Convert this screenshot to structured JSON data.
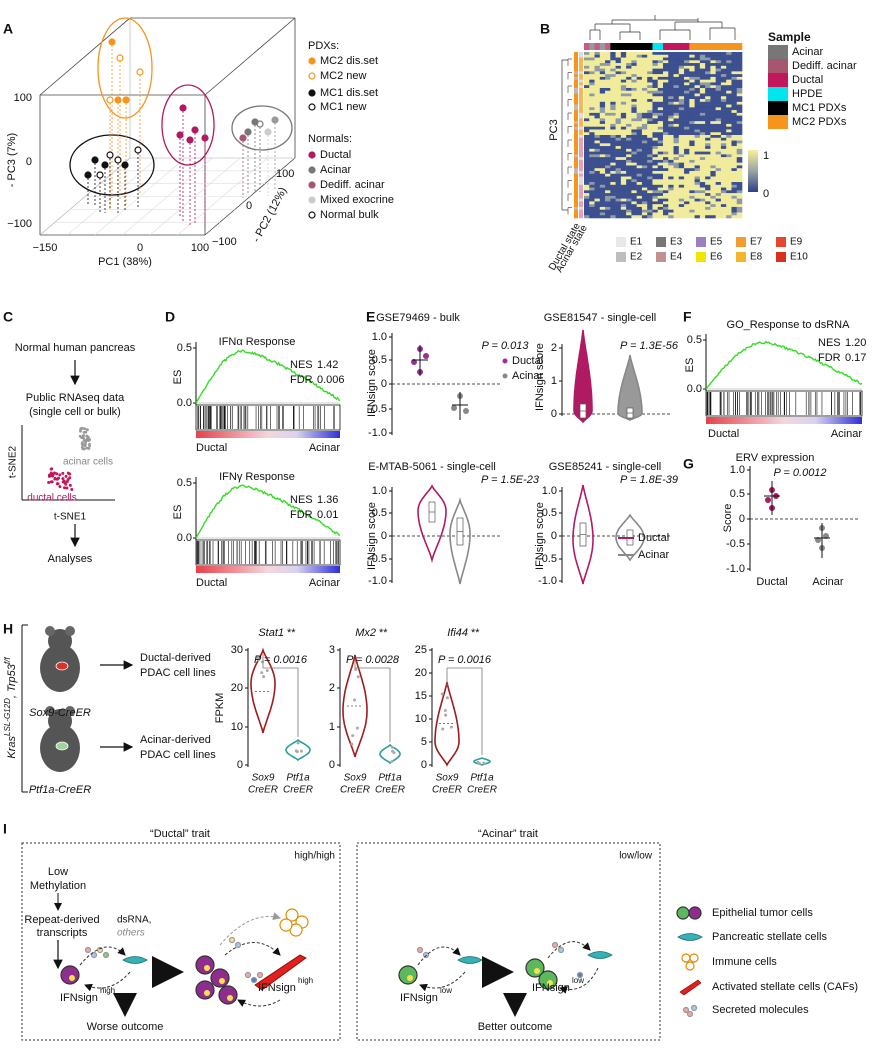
{
  "panels": {
    "A": {
      "label": "A",
      "x_axis": "PC1 (38%)",
      "y_axis": "- PC3 (7%)",
      "z_axis": "- PC2 (12%)",
      "x_ticks": [
        "−150",
        "0",
        "100"
      ],
      "y_ticks": [
        "100",
        "0",
        "−100"
      ],
      "z_ticks": [
        "100",
        "0",
        "−100"
      ],
      "pdx_title": "PDXs:",
      "pdx": [
        "MC2 dis.set",
        "MC2 new",
        "MC1 dis.set",
        "MC1 new"
      ],
      "normals_title": "Normals:",
      "normals": [
        "Ductal",
        "Acinar",
        "Dediff. acinar",
        "Mixed exocrine",
        "Normal bulk"
      ]
    },
    "B": {
      "label": "B",
      "row_label": "PC3",
      "row_annotations": [
        "Ductal state",
        "Acinar state"
      ],
      "scale": [
        "1",
        "0"
      ],
      "legend_title": "Sample",
      "samples": [
        "Acinar",
        "Dediff. acinar",
        "Ductal",
        "HPDE",
        "MC1 PDXs",
        "MC2 PDXs"
      ],
      "states": [
        "E1",
        "E2",
        "E3",
        "E4",
        "E5",
        "E6",
        "E7",
        "E8",
        "E9",
        "E10"
      ]
    },
    "C": {
      "label": "C",
      "start": "Normal human pancreas",
      "data": [
        "Public RNAseq data",
        "(single cell or bulk)"
      ],
      "x_axis": "t-SNE1",
      "y_axis": "t-SNE2",
      "clusters": [
        "acinar cells",
        "ductal cells"
      ],
      "end": "Analyses"
    },
    "D": {
      "label": "D",
      "plots": [
        {
          "title": "IFNα Response",
          "y_label": "ES",
          "ticks": [
            "0.5",
            "0.0"
          ],
          "stats": [
            [
              "NES",
              "1.42"
            ],
            [
              "FDR",
              "0.006"
            ]
          ],
          "ends": [
            "Ductal",
            "Acinar"
          ]
        },
        {
          "title": "IFNγ Response",
          "y_label": "ES",
          "ticks": [
            "0.5",
            "0.0"
          ],
          "stats": [
            [
              "NES",
              "1.36"
            ],
            [
              "FDR",
              "0.01"
            ]
          ],
          "ends": [
            "Ductal",
            "Acinar"
          ]
        }
      ]
    },
    "E": {
      "label": "E",
      "legend": [
        "Ductal",
        "Acinar"
      ],
      "plots": [
        {
          "title": "GSE79469 - bulk",
          "p": "P = 0.013",
          "y_label": "IFNsign score",
          "ticks": [
            "1.0",
            "0.5",
            "0",
            "-0.5",
            "-1.0"
          ]
        },
        {
          "title": "GSE81547 - single-cell",
          "p": "P = 1.3E-56",
          "y_label": "IFNsign score",
          "ticks": [
            "2",
            "1",
            "0"
          ]
        },
        {
          "title": "E-MTAB-5061 - single-cell",
          "p": "P = 1.5E-23",
          "y_label": "IFNsign score",
          "ticks": [
            "1.0",
            "0.5",
            "0",
            "-0.5",
            "-1.0"
          ]
        },
        {
          "title": "GSE85241 - single-cell",
          "p": "P = 1.8E-39",
          "y_label": "IFNsign score",
          "ticks": [
            "1.0",
            "0.5",
            "0",
            "-0.5",
            "-1.0"
          ]
        }
      ]
    },
    "F": {
      "label": "F",
      "title": "GO_Response to dsRNA",
      "y_label": "ES",
      "ticks": [
        "0.5",
        "0.0"
      ],
      "stats": [
        [
          "NES",
          "1.20"
        ],
        [
          "FDR",
          "0.17"
        ]
      ],
      "ends": [
        "Ductal",
        "Acinar"
      ]
    },
    "G": {
      "label": "G",
      "title": "ERV expression",
      "p": "P = 0.0012",
      "y_label": "Score",
      "ticks": [
        "1.0",
        "0.5",
        "0",
        "-0.5",
        "-1.0"
      ],
      "categories": [
        "Ductal",
        "Acinar"
      ]
    },
    "H": {
      "label": "H",
      "genotype": [
        "Kras",
        "LSL-G12D",
        ", Trp53",
        "f/f"
      ],
      "mice": [
        "Sox9-CreER",
        "Ptf1a-CreER"
      ],
      "outputs": [
        [
          "Ductal-derived",
          "PDAC cell lines"
        ],
        [
          "Acinar-derived",
          "PDAC cell lines"
        ]
      ],
      "y_label": "FPKM",
      "categories": [
        [
          "Sox9",
          "CreER"
        ],
        [
          "Ptf1a",
          "CreER"
        ]
      ],
      "plots": [
        {
          "gene": "Stat1",
          "stars": "**",
          "p": "P = 0.0016",
          "ticks": [
            "30",
            "20",
            "10",
            "0"
          ]
        },
        {
          "gene": "Mx2",
          "stars": "**",
          "p": "P = 0.0028",
          "ticks": [
            "3",
            "2",
            "1",
            "0"
          ]
        },
        {
          "gene": "Ifi44",
          "stars": "**",
          "p": "P = 0.0016",
          "ticks": [
            "25",
            "20",
            "15",
            "10",
            "5",
            "0"
          ]
        }
      ]
    },
    "I": {
      "label": "I",
      "ductal": {
        "title": "“Ductal” trait",
        "corner": "high/high",
        "methylation": [
          "Low",
          "Methylation"
        ],
        "transcripts": [
          "Repeat-derived",
          "transcripts"
        ],
        "secreted": [
          "dsRNA,",
          "others"
        ],
        "ifn": "IFNsign",
        "level": "high",
        "outcome": "Worse outcome"
      },
      "acinar": {
        "title": "“Acinar” trait",
        "corner": "low/low",
        "ifn": "IFNsign",
        "level": "low",
        "outcome": "Better outcome"
      },
      "legend": [
        "Epithelial tumor cells",
        "Pancreatic stellate cells",
        "Immune cells",
        "Activated stellate cells (CAFs)",
        "Secreted molecules"
      ]
    }
  }
}
